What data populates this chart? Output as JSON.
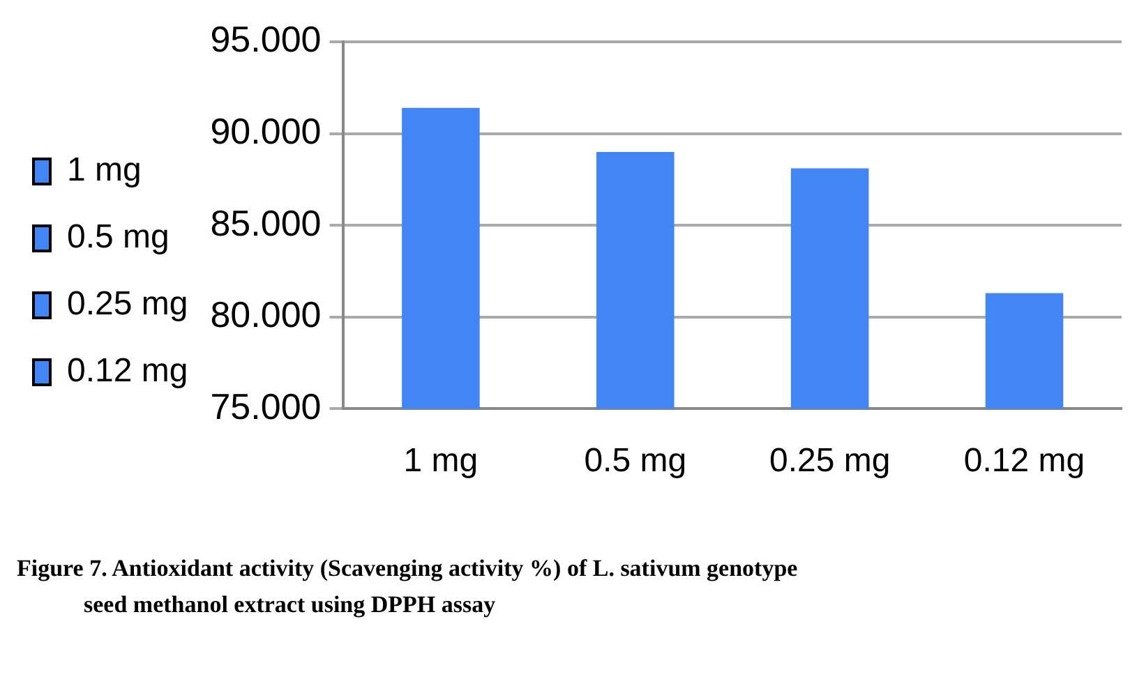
{
  "chart_data": {
    "type": "bar",
    "categories": [
      "1 mg",
      "0.5 mg",
      "0.25 mg",
      "0.12 mg"
    ],
    "series": [
      {
        "name": "1 mg",
        "color": "#4285f4",
        "values": [
          91.4,
          null,
          null,
          null
        ]
      },
      {
        "name": "0.5 mg",
        "color": "#4285f4",
        "values": [
          null,
          89.0,
          null,
          null
        ]
      },
      {
        "name": "0.25 mg",
        "color": "#4285f4",
        "values": [
          null,
          null,
          88.1,
          null
        ]
      },
      {
        "name": "0.12 mg",
        "color": "#4285f4",
        "values": [
          null,
          null,
          null,
          81.3
        ]
      }
    ],
    "ylim": [
      75,
      95
    ],
    "yticks": [
      {
        "value": 75,
        "label": "75.000"
      },
      {
        "value": 80,
        "label": "80.000"
      },
      {
        "value": 85,
        "label": "85.000"
      },
      {
        "value": 90,
        "label": "90.000"
      },
      {
        "value": 95,
        "label": "95.000"
      }
    ],
    "grid": "y",
    "legend": "left",
    "annotations": [
      "Figure 7. Antioxidant activity (Scavenging activity %) of L. sativum genotype seed methanol extract using DPPH assay"
    ]
  }
}
